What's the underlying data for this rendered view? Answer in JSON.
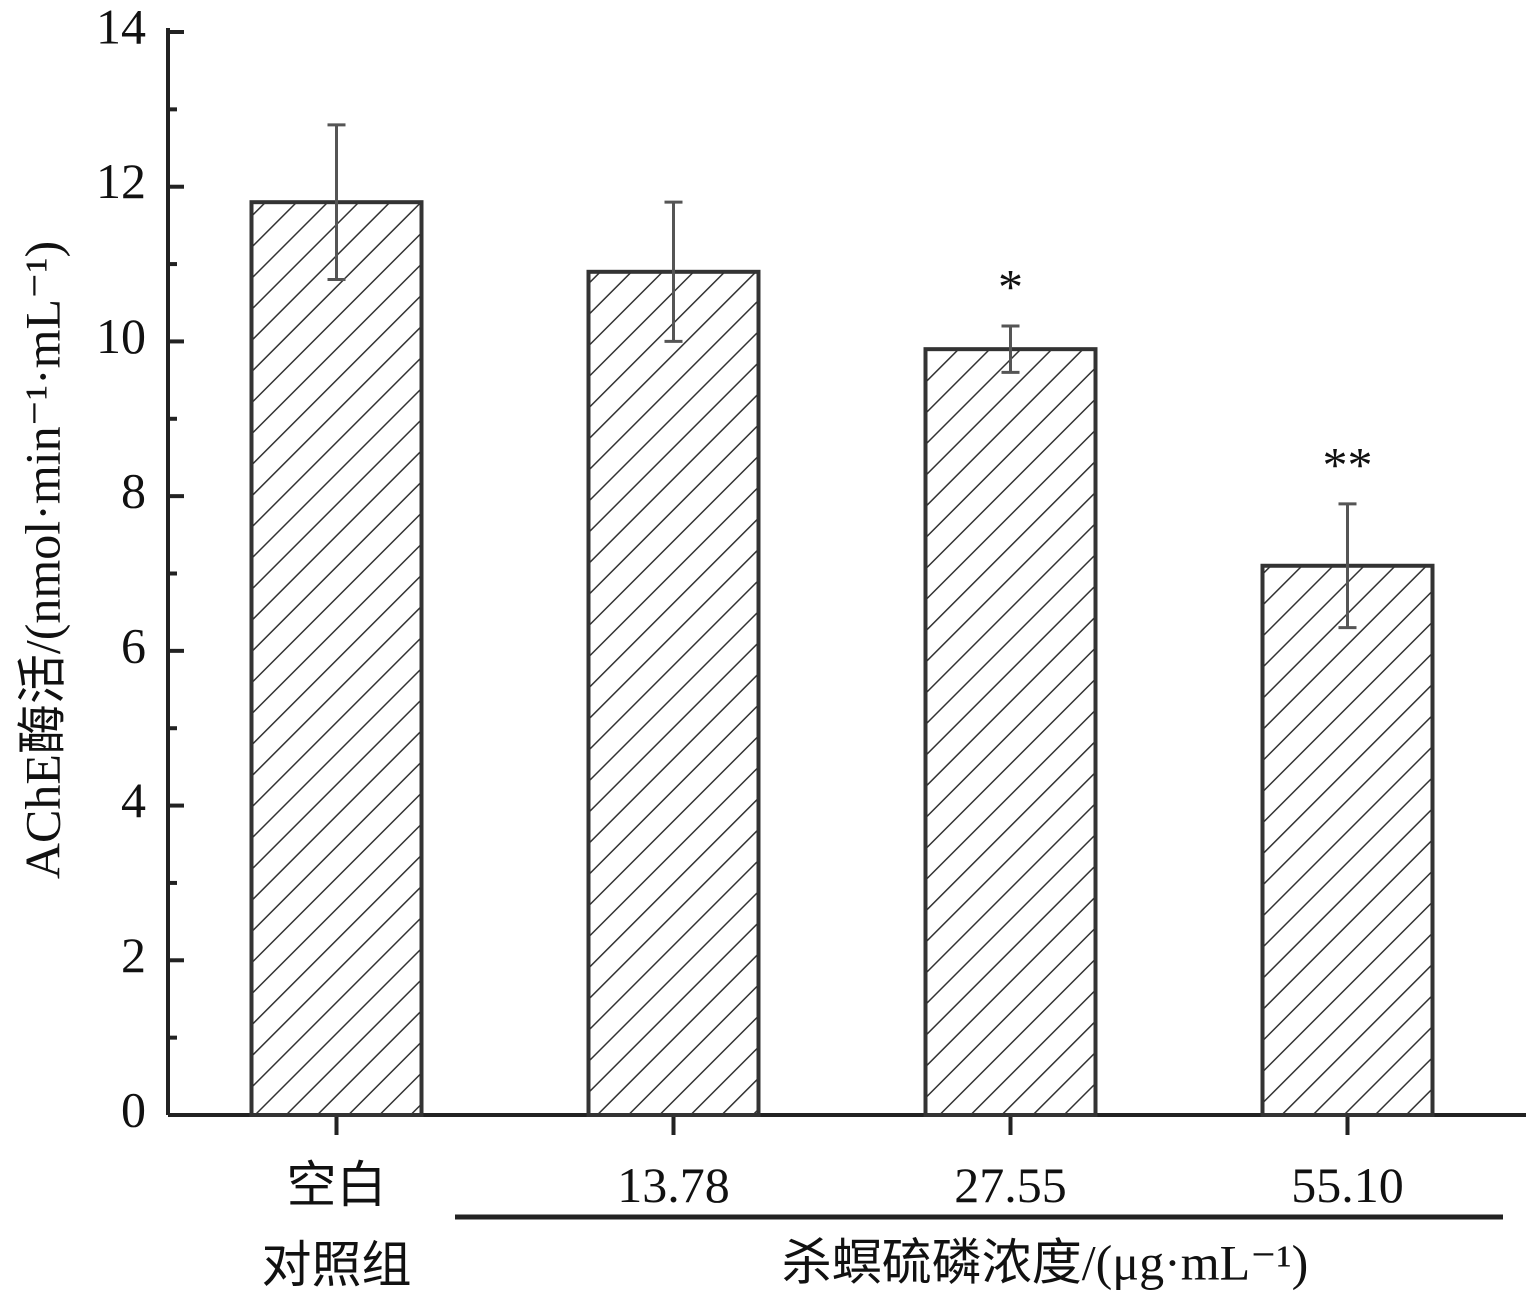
{
  "chart_data": {
    "type": "bar",
    "y_label": "AChE酶活/(nmol·min⁻¹·mL⁻¹)",
    "x_label": "杀螟硫磷浓度/(μg·mL⁻¹)",
    "categories": [
      "空白\n对照组",
      "13.78",
      "27.55",
      "55.10"
    ],
    "values": [
      11.8,
      10.9,
      9.9,
      7.1
    ],
    "errors": [
      1.0,
      0.9,
      0.3,
      0.8
    ],
    "significance": [
      null,
      null,
      "*",
      "**"
    ],
    "color": "#333333",
    "ylim": [
      0,
      14
    ],
    "yticks": [
      0,
      2,
      4,
      6,
      8,
      10,
      12,
      14
    ],
    "minor_yticks": [
      1,
      3,
      5,
      7,
      9,
      11,
      13
    ]
  }
}
